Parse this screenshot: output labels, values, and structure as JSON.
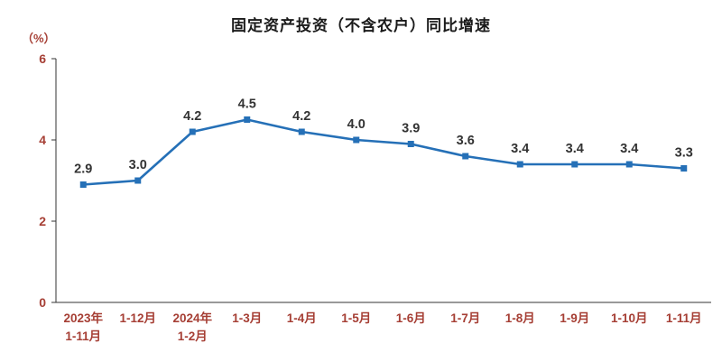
{
  "chart": {
    "title": "固定资产投资（不含农户）同比增速",
    "unit_label": "（%）"
  },
  "chart_data": {
    "type": "line",
    "title": "固定资产投资（不含农户）同比增速",
    "xlabel": "",
    "ylabel": "（%）",
    "categories": [
      "2023年\n1-11月",
      "1-12月",
      "2024年\n1-2月",
      "1-3月",
      "1-4月",
      "1-5月",
      "1-6月",
      "1-7月",
      "1-8月",
      "1-9月",
      "1-10月",
      "1-11月"
    ],
    "values": [
      2.9,
      3.0,
      4.2,
      4.5,
      4.2,
      4.0,
      3.9,
      3.6,
      3.4,
      3.4,
      3.4,
      3.3
    ],
    "ylim": [
      0,
      6
    ],
    "yticks": [
      0,
      2,
      4,
      6
    ],
    "grid": false,
    "legend": false,
    "line_color": "#2570b7",
    "marker": "square",
    "axis_color": "#333333",
    "axis_text_color": "#a63f35",
    "data_label_color": "#333333"
  }
}
